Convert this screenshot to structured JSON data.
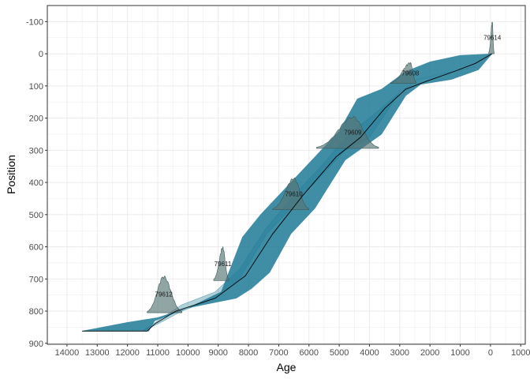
{
  "chart_data": {
    "type": "area",
    "title": "",
    "xlabel": "Age",
    "ylabel": "Position",
    "x_reversed": true,
    "y_reversed": true,
    "xlim": [
      -1150,
      14650
    ],
    "ylim": [
      -150,
      903
    ],
    "x_ticks": [
      14000,
      13000,
      12000,
      11000,
      10000,
      9000,
      8000,
      7000,
      6000,
      5000,
      4000,
      3000,
      2000,
      1000,
      0,
      -1000
    ],
    "x_tick_labels": [
      "14000",
      "13000",
      "12000",
      "11000",
      "10000",
      "9000",
      "8000",
      "7000",
      "6000",
      "5000",
      "4000",
      "3000",
      "2000",
      "1000",
      "0",
      "1000"
    ],
    "y_ticks": [
      -100,
      0,
      100,
      200,
      300,
      400,
      500,
      600,
      700,
      800,
      900
    ],
    "y_tick_labels": [
      "-100",
      "0",
      "100",
      "200",
      "300",
      "400",
      "500",
      "600",
      "700",
      "800",
      "900"
    ],
    "grid": true,
    "colors": {
      "ribbon": "#1f7a96",
      "median_line": "#000000",
      "distribution": "#567575",
      "panel_border": "#333333",
      "grid": "#ebebeb"
    },
    "series": [
      {
        "kind": "median",
        "points": [
          [
            -50,
            0
          ],
          [
            500,
            30
          ],
          [
            1200,
            55
          ],
          [
            2100,
            85
          ],
          [
            2800,
            110
          ],
          [
            3500,
            170
          ],
          [
            4300,
            260
          ],
          [
            5100,
            320
          ],
          [
            6200,
            440
          ],
          [
            7200,
            560
          ],
          [
            8100,
            690
          ],
          [
            9100,
            760
          ],
          [
            10400,
            800
          ],
          [
            11100,
            840
          ],
          [
            11350,
            862
          ],
          [
            13500,
            862
          ]
        ]
      },
      {
        "kind": "ribbon-outer",
        "upper": [
          [
            -50,
            0
          ],
          [
            1000,
            5
          ],
          [
            2000,
            25
          ],
          [
            2800,
            55
          ],
          [
            3600,
            110
          ],
          [
            4400,
            140
          ],
          [
            5000,
            240
          ],
          [
            5900,
            330
          ],
          [
            6800,
            420
          ],
          [
            7600,
            500
          ],
          [
            8200,
            570
          ],
          [
            8900,
            740
          ],
          [
            10000,
            790
          ],
          [
            11000,
            820
          ],
          [
            12000,
            835
          ],
          [
            13500,
            862
          ]
        ],
        "lower": [
          [
            -50,
            0
          ],
          [
            400,
            50
          ],
          [
            1300,
            80
          ],
          [
            2300,
            95
          ],
          [
            2800,
            130
          ],
          [
            3600,
            250
          ],
          [
            4800,
            330
          ],
          [
            5800,
            480
          ],
          [
            6600,
            560
          ],
          [
            7300,
            680
          ],
          [
            7900,
            730
          ],
          [
            8400,
            760
          ],
          [
            10000,
            790
          ],
          [
            11100,
            830
          ],
          [
            11300,
            862
          ],
          [
            13500,
            862
          ]
        ]
      },
      {
        "kind": "ribbon-inner",
        "upper": [
          [
            500,
            40
          ],
          [
            1500,
            60
          ],
          [
            2400,
            80
          ],
          [
            3000,
            120
          ],
          [
            4000,
            200
          ],
          [
            4700,
            250
          ],
          [
            5500,
            340
          ],
          [
            6400,
            430
          ],
          [
            7400,
            540
          ],
          [
            8300,
            670
          ],
          [
            9100,
            740
          ],
          [
            10200,
            780
          ],
          [
            11000,
            830
          ],
          [
            11500,
            862
          ]
        ],
        "lower": [
          [
            500,
            40
          ],
          [
            1500,
            60
          ],
          [
            2400,
            80
          ],
          [
            3000,
            120
          ],
          [
            4000,
            260
          ],
          [
            4800,
            300
          ],
          [
            5800,
            400
          ],
          [
            6600,
            480
          ],
          [
            7400,
            560
          ],
          [
            8300,
            700
          ],
          [
            9100,
            760
          ],
          [
            10200,
            800
          ],
          [
            11000,
            840
          ],
          [
            11500,
            862
          ]
        ]
      }
    ],
    "distributions": [
      {
        "label": "79614",
        "position": 0,
        "age_min": -120,
        "age_max": 60,
        "age_mode": -60,
        "peak_height": 100
      },
      {
        "label": "79608",
        "position": 92,
        "age_min": 2450,
        "age_max": 3300,
        "age_mode": 2650,
        "peak_height": 65
      },
      {
        "label": "79609",
        "position": 294,
        "age_min": 3700,
        "age_max": 5750,
        "age_mode": 4550,
        "peak_height": 100
      },
      {
        "label": "79610",
        "position": 485,
        "age_min": 6000,
        "age_max": 7200,
        "age_mode": 6500,
        "peak_height": 100
      },
      {
        "label": "79611",
        "position": 705,
        "age_min": 8650,
        "age_max": 9150,
        "age_mode": 8850,
        "peak_height": 105
      },
      {
        "label": "79612",
        "position": 805,
        "age_min": 10200,
        "age_max": 11350,
        "age_mode": 10800,
        "peak_height": 115
      }
    ]
  }
}
